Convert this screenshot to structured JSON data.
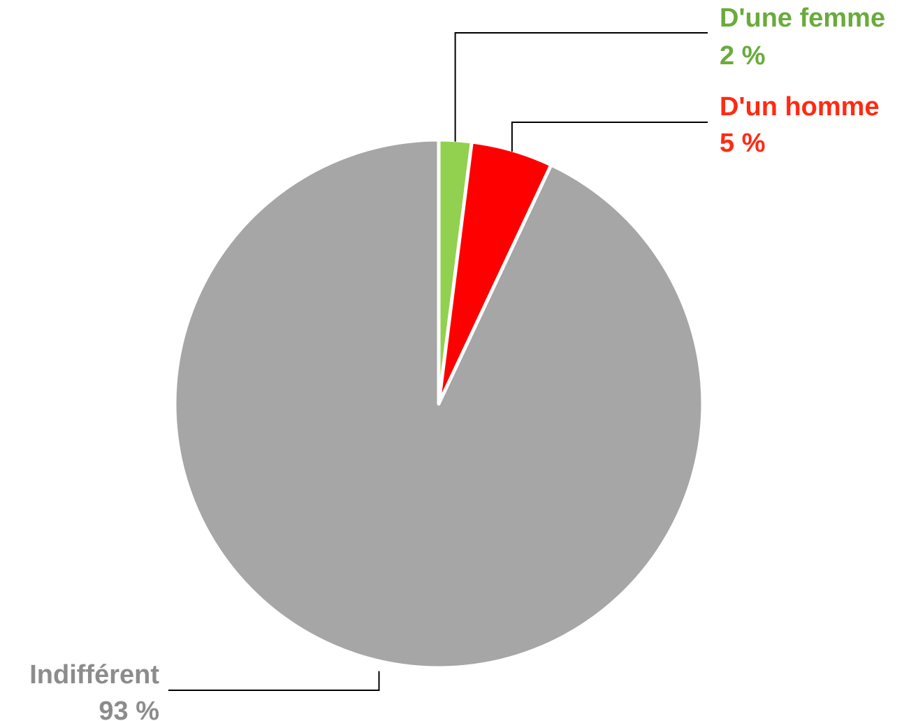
{
  "chart_data": {
    "type": "pie",
    "title": "",
    "unit": "%",
    "slices": [
      {
        "label": "D'une femme",
        "value": 2,
        "value_label": "2 %",
        "color": "#92d050",
        "label_color": "#6aab3c"
      },
      {
        "label": "D'un homme",
        "value": 5,
        "value_label": "5 %",
        "color": "#ff0000",
        "label_color": "#ff2a12"
      },
      {
        "label": "Indifférent",
        "value": 93,
        "value_label": "93 %",
        "color": "#a6a6a6",
        "label_color": "#8c8c8c"
      }
    ],
    "start_angle": "top",
    "direction": "clockwise",
    "legend": "none"
  }
}
